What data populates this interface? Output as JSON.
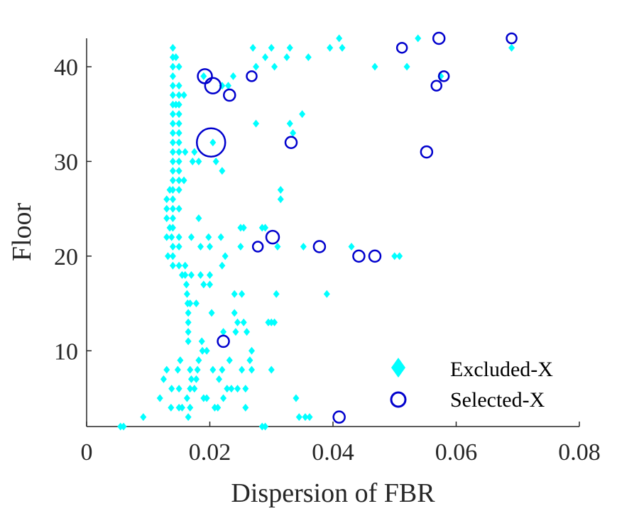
{
  "chart_data": {
    "type": "scatter",
    "title": "",
    "xlabel": "Dispersion of FBR",
    "ylabel": "Floor",
    "xlim": [
      0,
      0.08
    ],
    "ylim": [
      2,
      43
    ],
    "x_ticks": [
      0,
      0.02,
      0.04,
      0.06,
      0.08
    ],
    "x_tick_labels": [
      "0",
      "0.02",
      "0.04",
      "0.06",
      "0.08"
    ],
    "y_ticks": [
      10,
      20,
      30,
      40
    ],
    "y_tick_labels": [
      "10",
      "20",
      "30",
      "40"
    ],
    "grid": false,
    "legend_position": "bottom-right",
    "colors": {
      "excluded": "#00FFFF",
      "selected": "#0000CD",
      "axis": "#262626"
    },
    "series": [
      {
        "name": "Excluded-X",
        "marker": "diamond",
        "points": [
          [
            0.0055,
            2
          ],
          [
            0.006,
            2
          ],
          [
            0.0092,
            3
          ],
          [
            0.0119,
            5
          ],
          [
            0.0125,
            7
          ],
          [
            0.013,
            8
          ],
          [
            0.013,
            22
          ],
          [
            0.013,
            24
          ],
          [
            0.013,
            25
          ],
          [
            0.013,
            26
          ],
          [
            0.0132,
            20
          ],
          [
            0.0135,
            23
          ],
          [
            0.0135,
            27
          ],
          [
            0.0137,
            4
          ],
          [
            0.0138,
            6
          ],
          [
            0.0138,
            22
          ],
          [
            0.014,
            42
          ],
          [
            0.014,
            41
          ],
          [
            0.014,
            40
          ],
          [
            0.014,
            39
          ],
          [
            0.014,
            38
          ],
          [
            0.014,
            37
          ],
          [
            0.014,
            36
          ],
          [
            0.014,
            35
          ],
          [
            0.014,
            34
          ],
          [
            0.014,
            33
          ],
          [
            0.014,
            32
          ],
          [
            0.014,
            31
          ],
          [
            0.014,
            30
          ],
          [
            0.014,
            29
          ],
          [
            0.014,
            28
          ],
          [
            0.014,
            27
          ],
          [
            0.014,
            26
          ],
          [
            0.014,
            25
          ],
          [
            0.014,
            24
          ],
          [
            0.014,
            23
          ],
          [
            0.014,
            21
          ],
          [
            0.014,
            20
          ],
          [
            0.014,
            19
          ],
          [
            0.0145,
            41
          ],
          [
            0.0145,
            36
          ],
          [
            0.0148,
            8
          ],
          [
            0.015,
            40
          ],
          [
            0.015,
            38
          ],
          [
            0.015,
            37
          ],
          [
            0.015,
            36
          ],
          [
            0.015,
            35
          ],
          [
            0.015,
            34
          ],
          [
            0.015,
            33
          ],
          [
            0.015,
            32
          ],
          [
            0.015,
            31
          ],
          [
            0.015,
            30
          ],
          [
            0.015,
            29
          ],
          [
            0.015,
            28
          ],
          [
            0.015,
            27
          ],
          [
            0.015,
            25
          ],
          [
            0.015,
            22
          ],
          [
            0.015,
            21
          ],
          [
            0.015,
            19
          ],
          [
            0.015,
            6
          ],
          [
            0.015,
            4
          ],
          [
            0.0152,
            9
          ],
          [
            0.0155,
            18
          ],
          [
            0.0155,
            4
          ],
          [
            0.0158,
            37
          ],
          [
            0.0158,
            28
          ],
          [
            0.016,
            19
          ],
          [
            0.016,
            18
          ],
          [
            0.016,
            31
          ],
          [
            0.0162,
            17
          ],
          [
            0.0163,
            16
          ],
          [
            0.0163,
            5
          ],
          [
            0.0164,
            15
          ],
          [
            0.0165,
            14
          ],
          [
            0.0165,
            13
          ],
          [
            0.0165,
            12
          ],
          [
            0.0165,
            11
          ],
          [
            0.0165,
            3
          ],
          [
            0.0168,
            15
          ],
          [
            0.0168,
            8
          ],
          [
            0.0168,
            6
          ],
          [
            0.0168,
            4
          ],
          [
            0.017,
            18
          ],
          [
            0.017,
            7
          ],
          [
            0.017,
            22
          ],
          [
            0.0172,
            30
          ],
          [
            0.0175,
            31
          ],
          [
            0.0175,
            6
          ],
          [
            0.0178,
            7
          ],
          [
            0.0178,
            15
          ],
          [
            0.018,
            8
          ],
          [
            0.0182,
            30
          ],
          [
            0.0182,
            24
          ],
          [
            0.0182,
            9
          ],
          [
            0.0185,
            21
          ],
          [
            0.0185,
            18
          ],
          [
            0.0187,
            11
          ],
          [
            0.0188,
            10
          ],
          [
            0.019,
            39
          ],
          [
            0.019,
            17
          ],
          [
            0.019,
            5
          ],
          [
            0.0195,
            10
          ],
          [
            0.0195,
            5
          ],
          [
            0.0198,
            22
          ],
          [
            0.02,
            21
          ],
          [
            0.02,
            18
          ],
          [
            0.02,
            17
          ],
          [
            0.0203,
            14
          ],
          [
            0.0205,
            32
          ],
          [
            0.0205,
            8
          ],
          [
            0.0208,
            4
          ],
          [
            0.021,
            30
          ],
          [
            0.0213,
            4
          ],
          [
            0.0215,
            7
          ],
          [
            0.0218,
            22
          ],
          [
            0.022,
            38
          ],
          [
            0.022,
            29
          ],
          [
            0.022,
            19
          ],
          [
            0.022,
            8
          ],
          [
            0.0222,
            12
          ],
          [
            0.0222,
            5
          ],
          [
            0.0225,
            20
          ],
          [
            0.0228,
            6
          ],
          [
            0.023,
            38
          ],
          [
            0.0232,
            9
          ],
          [
            0.0235,
            6
          ],
          [
            0.0238,
            39
          ],
          [
            0.024,
            16
          ],
          [
            0.024,
            14
          ],
          [
            0.0242,
            12
          ],
          [
            0.0245,
            13
          ],
          [
            0.0245,
            6
          ],
          [
            0.025,
            23
          ],
          [
            0.025,
            21
          ],
          [
            0.0252,
            16
          ],
          [
            0.0252,
            8
          ],
          [
            0.0255,
            23
          ],
          [
            0.0255,
            13
          ],
          [
            0.0258,
            6
          ],
          [
            0.0258,
            4
          ],
          [
            0.026,
            12
          ],
          [
            0.0265,
            9
          ],
          [
            0.0268,
            10
          ],
          [
            0.0268,
            8
          ],
          [
            0.027,
            42
          ],
          [
            0.0275,
            40
          ],
          [
            0.0275,
            34
          ],
          [
            0.0285,
            23
          ],
          [
            0.0285,
            2
          ],
          [
            0.029,
            41
          ],
          [
            0.029,
            23
          ],
          [
            0.029,
            2
          ],
          [
            0.0295,
            13
          ],
          [
            0.03,
            42
          ],
          [
            0.03,
            13
          ],
          [
            0.03,
            8
          ],
          [
            0.0305,
            13
          ],
          [
            0.0305,
            40
          ],
          [
            0.0308,
            16
          ],
          [
            0.031,
            21
          ],
          [
            0.0315,
            27
          ],
          [
            0.0315,
            26
          ],
          [
            0.0325,
            41
          ],
          [
            0.033,
            42
          ],
          [
            0.033,
            34
          ],
          [
            0.0335,
            33
          ],
          [
            0.034,
            5
          ],
          [
            0.0345,
            3
          ],
          [
            0.035,
            35
          ],
          [
            0.0352,
            21
          ],
          [
            0.0355,
            3
          ],
          [
            0.036,
            41
          ],
          [
            0.0362,
            3
          ],
          [
            0.039,
            16
          ],
          [
            0.0395,
            42
          ],
          [
            0.041,
            43
          ],
          [
            0.0415,
            42
          ],
          [
            0.043,
            21
          ],
          [
            0.0468,
            40
          ],
          [
            0.05,
            20
          ],
          [
            0.0508,
            20
          ],
          [
            0.052,
            40
          ],
          [
            0.0538,
            43
          ],
          [
            0.0575,
            39
          ],
          [
            0.069,
            42
          ]
        ]
      },
      {
        "name": "Selected-X",
        "marker": "circle",
        "points": [
          {
            "x": 0.0192,
            "y": 39,
            "r": 10
          },
          {
            "x": 0.0205,
            "y": 38,
            "r": 11
          },
          {
            "x": 0.0202,
            "y": 32,
            "r": 20
          },
          {
            "x": 0.0232,
            "y": 37,
            "r": 8
          },
          {
            "x": 0.0222,
            "y": 11,
            "r": 8
          },
          {
            "x": 0.0268,
            "y": 39,
            "r": 7
          },
          {
            "x": 0.0278,
            "y": 21,
            "r": 7
          },
          {
            "x": 0.0302,
            "y": 22,
            "r": 9
          },
          {
            "x": 0.0332,
            "y": 32,
            "r": 8
          },
          {
            "x": 0.0378,
            "y": 21,
            "r": 8
          },
          {
            "x": 0.041,
            "y": 3,
            "r": 8
          },
          {
            "x": 0.0442,
            "y": 20,
            "r": 8
          },
          {
            "x": 0.0468,
            "y": 20,
            "r": 8
          },
          {
            "x": 0.0512,
            "y": 42,
            "r": 7
          },
          {
            "x": 0.0552,
            "y": 31,
            "r": 8
          },
          {
            "x": 0.0568,
            "y": 38,
            "r": 7
          },
          {
            "x": 0.0572,
            "y": 43,
            "r": 8
          },
          {
            "x": 0.058,
            "y": 39,
            "r": 7
          },
          {
            "x": 0.069,
            "y": 43,
            "r": 7
          }
        ]
      }
    ]
  }
}
